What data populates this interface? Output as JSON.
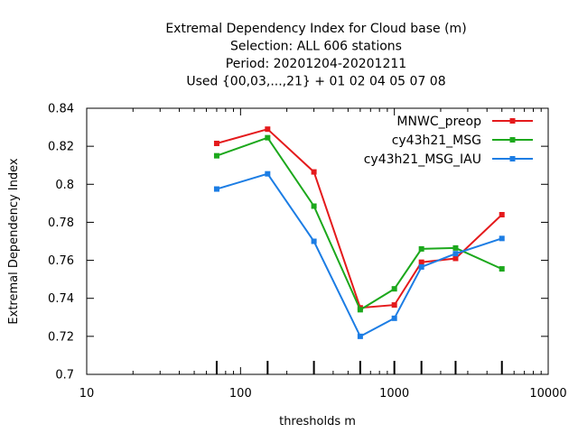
{
  "chart_data": {
    "type": "line",
    "title": [
      "Extremal Dependency Index  for Cloud base (m)",
      "Selection: ALL    606 stations",
      "Period: 20201204-20201211",
      "Used {00,03,...,21} + 01 02 04 05 07 08"
    ],
    "xlabel": "thresholds m",
    "ylabel": "Extremal Dependency Index",
    "x_scale": "log",
    "xlim": [
      10,
      10000
    ],
    "ylim": [
      0.7,
      0.84
    ],
    "x_ticks": [
      10,
      100,
      1000,
      10000
    ],
    "x_tick_labels": [
      "10",
      "100",
      "1000",
      "10000"
    ],
    "y_ticks": [
      0.7,
      0.72,
      0.74,
      0.76,
      0.78,
      0.8,
      0.82,
      0.84
    ],
    "y_tick_labels": [
      "0.7",
      "0.72",
      "0.74",
      "0.76",
      "0.78",
      "0.8",
      "0.82",
      "0.84"
    ],
    "legend_position": "top-right",
    "x": [
      70,
      150,
      300,
      600,
      1000,
      1500,
      2500,
      5000
    ],
    "series": [
      {
        "name": "MNWC_preop",
        "color": "#e41a1c",
        "values": [
          0.8215,
          0.829,
          0.8065,
          0.735,
          0.7365,
          0.759,
          0.761,
          0.784
        ]
      },
      {
        "name": "cy43h21_MSG",
        "color": "#1ca81c",
        "values": [
          0.815,
          0.8245,
          0.7885,
          0.734,
          0.745,
          0.766,
          0.7665,
          0.7555
        ]
      },
      {
        "name": "cy43h21_MSG_IAU",
        "color": "#1c7de4",
        "values": [
          0.7975,
          0.8055,
          0.77,
          0.72,
          0.7295,
          0.7565,
          0.7635,
          0.7715
        ]
      }
    ]
  }
}
